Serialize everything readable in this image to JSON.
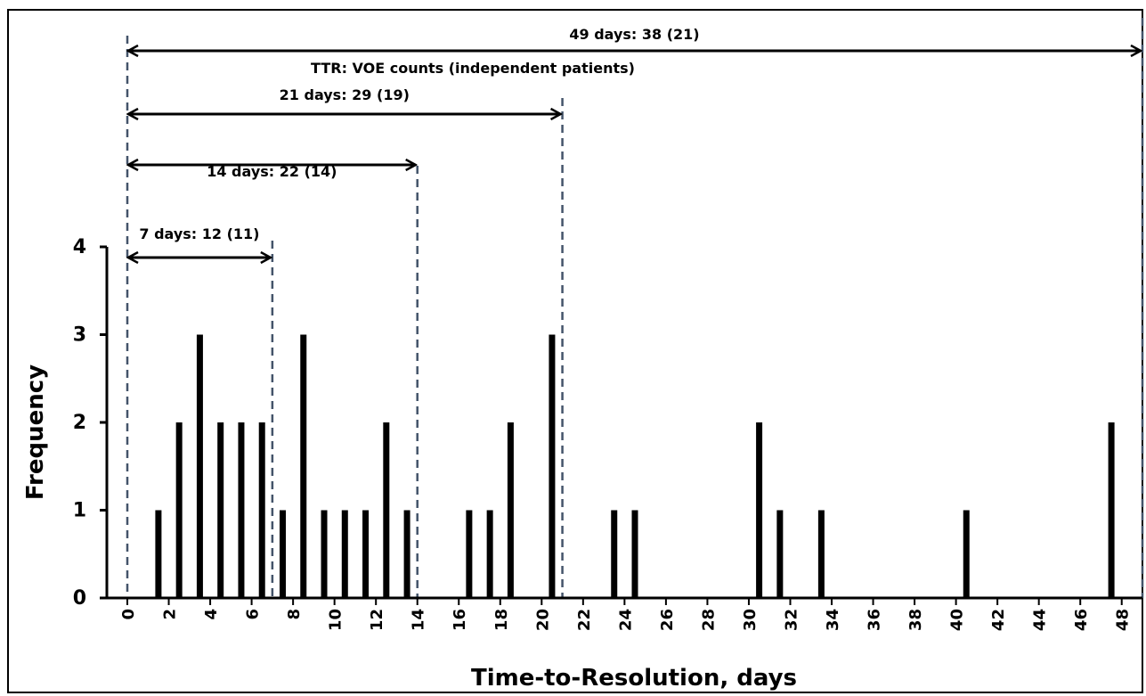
{
  "chart_data": {
    "type": "bar",
    "title": "",
    "xlabel": "Time-to-Resolution, days",
    "ylabel": "Frequency",
    "xlim": [
      0,
      49
    ],
    "ylim": [
      0,
      4
    ],
    "x_ticks": [
      0,
      2,
      4,
      6,
      8,
      10,
      12,
      14,
      16,
      18,
      20,
      22,
      24,
      26,
      28,
      30,
      32,
      34,
      36,
      38,
      40,
      42,
      44,
      46,
      48
    ],
    "y_ticks": [
      0,
      1,
      2,
      3,
      4
    ],
    "grid": false,
    "bar_color": "#000000",
    "series": [
      {
        "x": [
          1.5,
          2.5,
          3.5,
          4.5,
          5.5,
          6.5,
          7.5,
          8.5,
          9.5,
          10.5,
          11.5,
          12.5,
          13.5,
          16.5,
          17.5,
          18.5,
          20.5,
          23.5,
          24.5,
          30.5,
          31.5,
          33.5,
          40.5,
          47.5
        ],
        "values": [
          1,
          2,
          3,
          2,
          2,
          2,
          1,
          3,
          1,
          1,
          1,
          2,
          1,
          1,
          1,
          2,
          3,
          1,
          1,
          2,
          1,
          1,
          1,
          2
        ]
      }
    ],
    "cutoff_line_color": "#44546a",
    "cutoffs": [
      0,
      7,
      14,
      21,
      49
    ],
    "annotations": [
      {
        "text": "7 days: 12 (11)",
        "from": 0,
        "to": 7
      },
      {
        "text": "14 days: 22 (14)",
        "from": 0,
        "to": 14
      },
      {
        "text": "21 days: 29 (19)",
        "from": 0,
        "to": 21
      },
      {
        "text": "49 days: 38 (21)",
        "from": 0,
        "to": 49
      }
    ],
    "note": "TTR: VOE counts (independent patients)"
  }
}
